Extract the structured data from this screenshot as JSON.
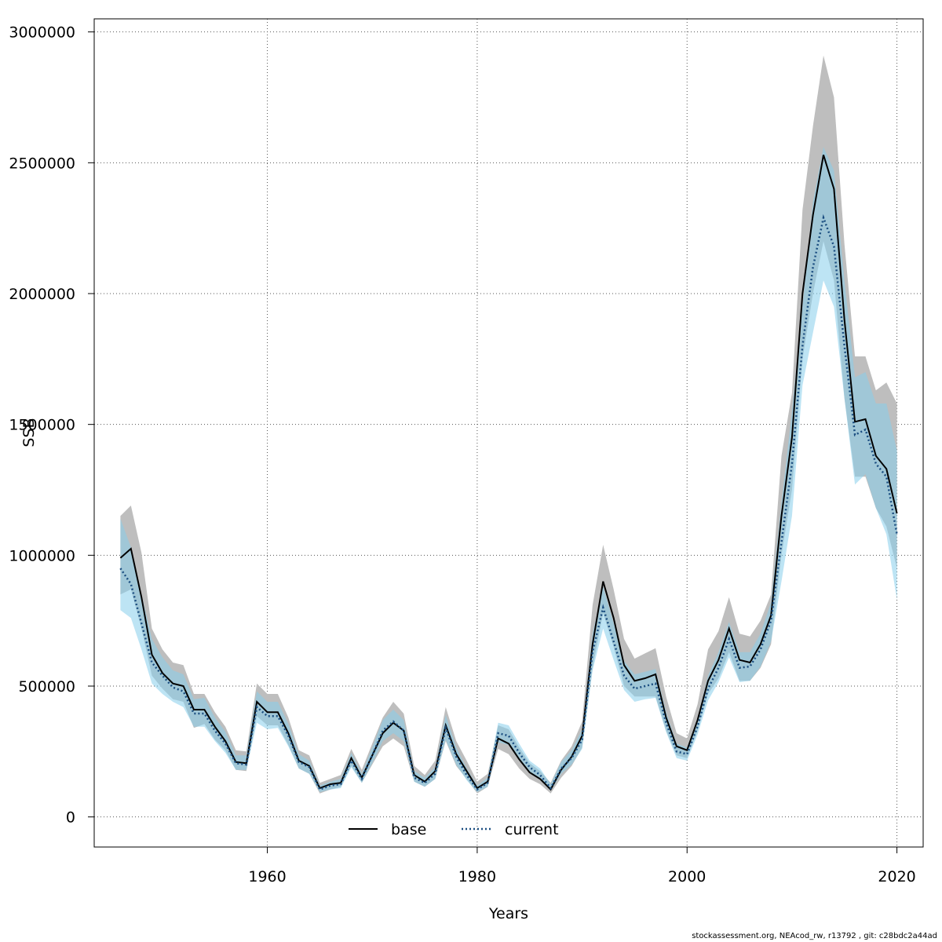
{
  "chart_data": {
    "type": "line",
    "xlabel": "Years",
    "ylabel": "SSB",
    "xlim": [
      1943.5,
      2022.5
    ],
    "ylim": [
      -115000,
      3050000
    ],
    "x_ticks": [
      1960,
      1980,
      2000,
      2020
    ],
    "y_ticks": [
      0,
      500000,
      1000000,
      1500000,
      2000000,
      2500000,
      3000000
    ],
    "x_tick_labels": [
      "1960",
      "1980",
      "2000",
      "2020"
    ],
    "y_tick_labels": [
      "0",
      "500000",
      "1000000",
      "1500000",
      "2000000",
      "2500000",
      "3000000"
    ],
    "grid": true,
    "legend_position": "bottom",
    "years": [
      1946,
      1947,
      1948,
      1949,
      1950,
      1951,
      1952,
      1953,
      1954,
      1955,
      1956,
      1957,
      1958,
      1959,
      1960,
      1961,
      1962,
      1963,
      1964,
      1965,
      1966,
      1967,
      1968,
      1969,
      1970,
      1971,
      1972,
      1973,
      1974,
      1975,
      1976,
      1977,
      1978,
      1979,
      1980,
      1981,
      1982,
      1983,
      1984,
      1985,
      1986,
      1987,
      1988,
      1989,
      1990,
      1991,
      1992,
      1993,
      1994,
      1995,
      1996,
      1997,
      1998,
      1999,
      2000,
      2001,
      2002,
      2003,
      2004,
      2005,
      2006,
      2007,
      2008,
      2009,
      2010,
      2011,
      2012,
      2013,
      2014,
      2015,
      2016,
      2017,
      2018,
      2019,
      2020
    ],
    "series": [
      {
        "name": "base",
        "color": "#000000",
        "band_color": "#bebebe",
        "line_style": "solid",
        "values": [
          990000,
          1025000,
          840000,
          620000,
          550000,
          510000,
          500000,
          410000,
          410000,
          345000,
          290000,
          210000,
          205000,
          440000,
          400000,
          400000,
          320000,
          215000,
          195000,
          110000,
          125000,
          130000,
          225000,
          150000,
          235000,
          320000,
          360000,
          330000,
          160000,
          135000,
          175000,
          350000,
          240000,
          175000,
          110000,
          135000,
          300000,
          280000,
          220000,
          170000,
          145000,
          105000,
          180000,
          230000,
          310000,
          660000,
          900000,
          760000,
          580000,
          520000,
          530000,
          545000,
          380000,
          270000,
          255000,
          370000,
          520000,
          600000,
          720000,
          600000,
          590000,
          660000,
          770000,
          1150000,
          1450000,
          2000000,
          2300000,
          2530000,
          2400000,
          1900000,
          1510000,
          1520000,
          1380000,
          1330000,
          1160000
        ],
        "lower": [
          850000,
          870000,
          720000,
          540000,
          490000,
          450000,
          440000,
          340000,
          355000,
          295000,
          255000,
          180000,
          175000,
          385000,
          350000,
          350000,
          275000,
          185000,
          165000,
          90000,
          105000,
          115000,
          195000,
          130000,
          200000,
          270000,
          300000,
          270000,
          135000,
          115000,
          145000,
          290000,
          195000,
          145000,
          90000,
          115000,
          260000,
          240000,
          185000,
          145000,
          125000,
          90000,
          150000,
          195000,
          265000,
          570000,
          780000,
          650000,
          500000,
          460000,
          460000,
          460000,
          330000,
          235000,
          225000,
          330000,
          470000,
          530000,
          630000,
          520000,
          520000,
          570000,
          660000,
          1000000,
          1250000,
          1750000,
          2000000,
          2200000,
          2050000,
          1600000,
          1300000,
          1300000,
          1180000,
          1110000,
          950000
        ],
        "upper": [
          1150000,
          1190000,
          1010000,
          720000,
          640000,
          590000,
          580000,
          470000,
          470000,
          400000,
          345000,
          255000,
          250000,
          510000,
          470000,
          470000,
          380000,
          255000,
          235000,
          130000,
          145000,
          160000,
          260000,
          180000,
          280000,
          380000,
          440000,
          395000,
          195000,
          160000,
          215000,
          420000,
          290000,
          215000,
          135000,
          165000,
          350000,
          335000,
          265000,
          205000,
          175000,
          130000,
          215000,
          270000,
          365000,
          810000,
          1040000,
          870000,
          680000,
          605000,
          625000,
          645000,
          460000,
          320000,
          300000,
          430000,
          640000,
          710000,
          840000,
          700000,
          690000,
          750000,
          850000,
          1380000,
          1620000,
          2320000,
          2640000,
          2910000,
          2750000,
          2190000,
          1760000,
          1760000,
          1630000,
          1660000,
          1580000
        ]
      },
      {
        "name": "current",
        "color": "#1a4d80",
        "band_color": "#87ceeb",
        "line_style": "dotted",
        "values": [
          950000,
          890000,
          740000,
          590000,
          540000,
          495000,
          480000,
          395000,
          395000,
          330000,
          280000,
          205000,
          200000,
          420000,
          385000,
          385000,
          310000,
          210000,
          190000,
          105000,
          120000,
          125000,
          215000,
          145000,
          235000,
          330000,
          365000,
          330000,
          150000,
          130000,
          165000,
          340000,
          230000,
          160000,
          105000,
          130000,
          320000,
          310000,
          245000,
          190000,
          160000,
          110000,
          185000,
          225000,
          295000,
          630000,
          800000,
          670000,
          540000,
          490000,
          500000,
          510000,
          360000,
          250000,
          240000,
          345000,
          490000,
          570000,
          680000,
          570000,
          575000,
          640000,
          750000,
          1050000,
          1350000,
          1800000,
          2100000,
          2290000,
          2180000,
          1800000,
          1460000,
          1480000,
          1350000,
          1300000,
          1080000
        ],
        "lower": [
          790000,
          760000,
          640000,
          510000,
          470000,
          440000,
          420000,
          345000,
          345000,
          290000,
          245000,
          180000,
          180000,
          360000,
          335000,
          340000,
          270000,
          185000,
          165000,
          95000,
          105000,
          110000,
          190000,
          130000,
          205000,
          290000,
          320000,
          290000,
          135000,
          115000,
          145000,
          295000,
          200000,
          140000,
          95000,
          115000,
          285000,
          275000,
          215000,
          170000,
          145000,
          100000,
          165000,
          200000,
          260000,
          560000,
          720000,
          600000,
          485000,
          440000,
          450000,
          455000,
          325000,
          225000,
          215000,
          315000,
          445000,
          515000,
          610000,
          515000,
          520000,
          575000,
          670000,
          900000,
          1150000,
          1650000,
          1850000,
          2050000,
          1950000,
          1600000,
          1270000,
          1310000,
          1180000,
          1080000,
          830000
        ],
        "upper": [
          1140000,
          1030000,
          850000,
          680000,
          610000,
          560000,
          545000,
          450000,
          455000,
          380000,
          325000,
          235000,
          235000,
          480000,
          440000,
          440000,
          355000,
          240000,
          215000,
          120000,
          135000,
          145000,
          245000,
          165000,
          265000,
          370000,
          410000,
          370000,
          175000,
          150000,
          190000,
          390000,
          265000,
          185000,
          120000,
          150000,
          360000,
          350000,
          280000,
          215000,
          185000,
          125000,
          210000,
          255000,
          335000,
          700000,
          880000,
          740000,
          595000,
          545000,
          555000,
          565000,
          400000,
          280000,
          265000,
          380000,
          540000,
          630000,
          745000,
          630000,
          630000,
          700000,
          820000,
          1200000,
          1550000,
          1950000,
          2350000,
          2560000,
          2470000,
          2050000,
          1680000,
          1700000,
          1580000,
          1580000,
          1400000
        ]
      }
    ]
  },
  "footer_text": "stockassessment.org, NEAcod_rw, r13792 , git: c28bdc2a44ad"
}
